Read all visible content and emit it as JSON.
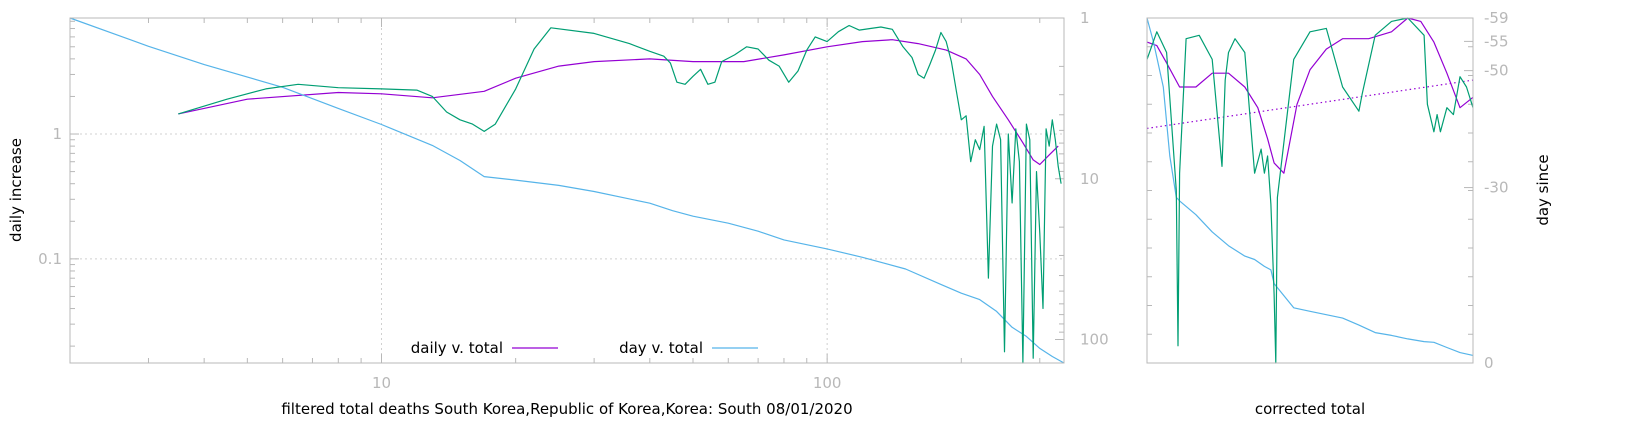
{
  "colors": {
    "daily": "#9400d3",
    "day": "#56b4e9",
    "green": "#009e73",
    "grid": "#d0d0d0",
    "frame": "#b8b8b8",
    "tick_text": "#b8b8b8"
  },
  "chart_data": [
    {
      "type": "line",
      "xscale": "log",
      "yscale": "log",
      "y2scale": "log-reversed",
      "xlim": [
        2,
        340
      ],
      "ylim": [
        0.01465,
        8.5
      ],
      "y2lim": [
        1,
        140
      ],
      "xlabel": "filtered total deaths South Korea,Republic of Korea,Korea: South 08/01/2020",
      "ylabel": "daily increase",
      "x_ticks": [
        {
          "value": 10,
          "label": "10"
        },
        {
          "value": 100,
          "label": "100"
        }
      ],
      "y_ticks": [
        {
          "value": 1,
          "label": "1"
        },
        {
          "value": 0.1,
          "label": "0.1"
        }
      ],
      "y2_ticks": [
        {
          "value": 1,
          "label": "1"
        },
        {
          "value": 10,
          "label": "10"
        },
        {
          "value": 100,
          "label": "100"
        }
      ],
      "grid": true,
      "legend": [
        {
          "label": "daily v. total",
          "series": "daily"
        },
        {
          "label": "day v. total",
          "series": "day"
        }
      ],
      "legend_position": "bottom-center",
      "series": [
        {
          "key": "daily",
          "axis": "y",
          "x": [
            3.5,
            5,
            8,
            10,
            13,
            17,
            20,
            25,
            30,
            40,
            50,
            65,
            80,
            100,
            120,
            140,
            160,
            185,
            205,
            220,
            235,
            255,
            275,
            290,
            300,
            315,
            330
          ],
          "y": [
            1.45,
            1.9,
            2.15,
            2.1,
            1.95,
            2.2,
            2.8,
            3.5,
            3.8,
            4.0,
            3.8,
            3.8,
            4.3,
            5.0,
            5.5,
            5.7,
            5.3,
            4.7,
            4.0,
            3.0,
            2.0,
            1.3,
            0.85,
            0.62,
            0.57,
            0.68,
            0.8
          ]
        },
        {
          "key": "day",
          "axis": "y2",
          "x": [
            2,
            3,
            4,
            6,
            8,
            10,
            13,
            15,
            17,
            20,
            25,
            30,
            40,
            45,
            50,
            60,
            70,
            80,
            100,
            120,
            150,
            180,
            200,
            220,
            240,
            260,
            280,
            300,
            320,
            340
          ],
          "y": [
            1,
            1.5,
            1.95,
            2.7,
            3.65,
            4.6,
            6.2,
            7.7,
            9.7,
            10.2,
            11.0,
            12.0,
            14.2,
            15.8,
            17.1,
            18.9,
            21.2,
            24.0,
            27.3,
            30.8,
            36.4,
            45.4,
            51.5,
            56.5,
            66.9,
            84.0,
            95.6,
            113.5,
            127.5,
            140
          ]
        },
        {
          "key": "green",
          "axis": "y",
          "x": [
            3.5,
            4.5,
            5.5,
            6.5,
            8,
            10,
            12,
            13,
            14,
            15,
            16,
            17,
            18,
            20,
            22,
            24,
            30,
            36,
            40,
            43,
            44.5,
            46,
            48,
            50,
            52,
            54,
            56,
            58,
            62,
            66,
            70,
            74,
            78,
            82,
            86,
            90,
            94,
            100,
            106,
            112,
            118,
            125,
            132,
            140,
            148,
            155,
            160,
            165,
            170,
            175,
            180,
            185,
            190,
            195,
            200,
            205,
            210,
            215,
            220,
            225,
            230,
            235,
            240,
            245,
            250,
            255,
            260,
            265,
            270,
            275,
            280,
            285,
            290,
            295,
            300,
            305,
            310,
            315,
            320,
            325,
            330,
            335
          ],
          "y": [
            1.45,
            1.9,
            2.3,
            2.5,
            2.35,
            2.3,
            2.25,
            2.0,
            1.5,
            1.3,
            1.2,
            1.05,
            1.2,
            2.3,
            4.8,
            7.1,
            6.4,
            5.3,
            4.6,
            4.2,
            3.7,
            2.6,
            2.5,
            2.9,
            3.3,
            2.5,
            2.6,
            3.8,
            4.3,
            5.0,
            4.8,
            3.9,
            3.5,
            2.6,
            3.2,
            4.7,
            6.0,
            5.5,
            6.6,
            7.4,
            6.8,
            7.0,
            7.2,
            6.9,
            5.0,
            4.1,
            3.0,
            2.8,
            3.6,
            4.7,
            6.5,
            5.5,
            3.8,
            2.2,
            1.3,
            1.4,
            0.6,
            0.9,
            0.75,
            1.15,
            0.07,
            0.8,
            1.2,
            0.9,
            0.018,
            1.0,
            0.28,
            1.1,
            0.6,
            0.014,
            1.2,
            0.9,
            0.016,
            0.5,
            0.16,
            0.04,
            1.1,
            0.8,
            1.3,
            0.9,
            0.55,
            0.4
          ]
        }
      ]
    },
    {
      "type": "line",
      "xlabel": "corrected total",
      "ylabel": "day since",
      "xlim": [
        0,
        1
      ],
      "y2lim": [
        -59,
        0
      ],
      "y2_ticks": [
        {
          "value": -59,
          "label": "-59"
        },
        {
          "value": -55,
          "label": "-55"
        },
        {
          "value": -50,
          "label": "-50"
        },
        {
          "value": -30,
          "label": "-30"
        },
        {
          "value": 0,
          "label": "0"
        }
      ],
      "grid": false,
      "series": [
        {
          "key": "daily",
          "style": "solid",
          "x": [
            0,
            0.03,
            0.06,
            0.1,
            0.15,
            0.2,
            0.25,
            0.3,
            0.34,
            0.37,
            0.39,
            0.42,
            0.46,
            0.5,
            0.55,
            0.6,
            0.68,
            0.75,
            0.8,
            0.84,
            0.88,
            0.92,
            0.96,
            1.0
          ],
          "y": [
            0.93,
            0.92,
            0.87,
            0.8,
            0.8,
            0.84,
            0.84,
            0.8,
            0.74,
            0.65,
            0.58,
            0.55,
            0.75,
            0.85,
            0.91,
            0.94,
            0.94,
            0.96,
            1.0,
            0.99,
            0.93,
            0.84,
            0.74,
            0.77
          ]
        },
        {
          "key": "daily",
          "style": "dotted",
          "x": [
            0,
            1
          ],
          "y": [
            0.68,
            0.82
          ]
        },
        {
          "key": "day",
          "style": "solid",
          "x": [
            0,
            0.02,
            0.05,
            0.07,
            0.09,
            0.1,
            0.15,
            0.2,
            0.25,
            0.3,
            0.33,
            0.36,
            0.38,
            0.39,
            0.45,
            0.5,
            0.6,
            0.65,
            0.7,
            0.75,
            0.8,
            0.85,
            0.88,
            0.92,
            0.96,
            1.0
          ],
          "y": [
            1.0,
            0.93,
            0.8,
            0.6,
            0.48,
            0.47,
            0.43,
            0.38,
            0.34,
            0.31,
            0.3,
            0.28,
            0.27,
            0.23,
            0.16,
            0.15,
            0.13,
            0.11,
            0.088,
            0.08,
            0.07,
            0.062,
            0.06,
            0.045,
            0.03,
            0.022
          ]
        },
        {
          "key": "green",
          "style": "solid",
          "x": [
            0,
            0.03,
            0.06,
            0.09,
            0.095,
            0.1,
            0.12,
            0.16,
            0.2,
            0.23,
            0.24,
            0.25,
            0.27,
            0.3,
            0.33,
            0.35,
            0.36,
            0.37,
            0.38,
            0.39,
            0.395,
            0.4,
            0.45,
            0.5,
            0.55,
            0.6,
            0.65,
            0.66,
            0.7,
            0.75,
            0.8,
            0.85,
            0.86,
            0.88,
            0.89,
            0.9,
            0.92,
            0.94,
            0.96,
            0.98,
            1.0
          ],
          "y": [
            0.88,
            0.96,
            0.9,
            0.5,
            0.05,
            0.55,
            0.94,
            0.95,
            0.88,
            0.57,
            0.82,
            0.9,
            0.94,
            0.9,
            0.55,
            0.62,
            0.55,
            0.6,
            0.46,
            0.2,
            0.0,
            0.48,
            0.88,
            0.96,
            0.97,
            0.8,
            0.73,
            0.78,
            0.95,
            0.99,
            1.0,
            0.95,
            0.75,
            0.67,
            0.72,
            0.67,
            0.74,
            0.72,
            0.83,
            0.8,
            0.74
          ]
        }
      ]
    }
  ]
}
